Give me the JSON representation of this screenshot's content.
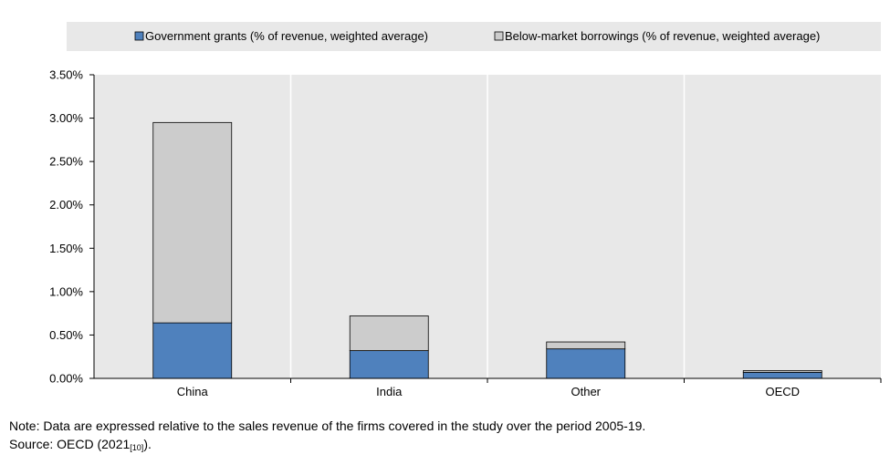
{
  "chart_data": {
    "type": "bar",
    "stacked": true,
    "categories": [
      "China",
      "India",
      "Other",
      "OECD"
    ],
    "series": [
      {
        "name": "Government grants (% of revenue, weighted average)",
        "color": "#4f81bd",
        "values": [
          0.0064,
          0.0032,
          0.0034,
          0.0007
        ]
      },
      {
        "name": "Below-market borrowings (% of revenue, weighted average)",
        "color": "#cccccc",
        "values": [
          0.0231,
          0.004,
          0.0008,
          0.0002
        ]
      }
    ],
    "ylim": [
      0,
      0.035
    ],
    "yticks": [
      0,
      0.005,
      0.01,
      0.015,
      0.02,
      0.025,
      0.03,
      0.035
    ],
    "ytick_labels": [
      "0.00%",
      "0.50%",
      "1.00%",
      "1.50%",
      "2.00%",
      "2.50%",
      "3.00%",
      "3.50%"
    ],
    "title": "",
    "xlabel": "",
    "ylabel": "",
    "grid": "vertical",
    "legend_position": "top",
    "plot_background": "#e8e8e8"
  },
  "note": "Note: Data are expressed relative to the sales revenue of the firms covered in the study over the period 2005-19.",
  "source": {
    "prefix": "Source: OECD (2021",
    "ref": "[10]",
    "suffix": ")."
  }
}
